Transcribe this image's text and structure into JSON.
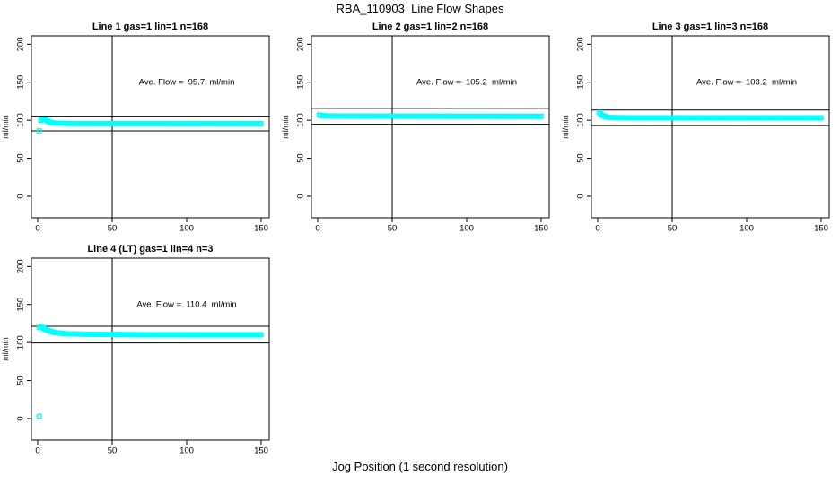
{
  "page_title": "RBA_110903  Line Flow Shapes",
  "outer_xlabel": "Jog Position (1 second resolution)",
  "colors": {
    "point": "#00ffff",
    "axis": "#000000",
    "text": "#000000",
    "background": "#ffffff"
  },
  "chart_data": [
    {
      "type": "scatter",
      "grid_cell": [
        0,
        0
      ],
      "title": "Line 1 gas=1 lin=1 n=168",
      "line": 1,
      "gas": 1,
      "lin": 1,
      "n": 168,
      "annotation": "Ave. Flow =  95.7  ml/min",
      "ave_flow_ml_min": 95.7,
      "ylabel": "ml/min",
      "x_ticks": [
        0,
        50,
        100,
        150
      ],
      "y_ticks": [
        0,
        50,
        100,
        150,
        200
      ],
      "xlim": [
        -4,
        155
      ],
      "ylim": [
        -28,
        212
      ],
      "ref_lines_ml_min": [
        105.3,
        86.1
      ],
      "vline_x": 50,
      "marker": "open-square",
      "grid": false,
      "series": {
        "name": "flow-vs-jog-position",
        "x_start": 2,
        "x_end": 150,
        "x_step": 1,
        "anchors": [
          [
            2,
            100
          ],
          [
            3,
            101
          ],
          [
            4,
            101.5
          ],
          [
            5,
            101
          ],
          [
            6,
            99.5
          ],
          [
            8,
            97.5
          ],
          [
            10,
            96.5
          ],
          [
            14,
            96
          ],
          [
            20,
            95.7
          ],
          [
            40,
            95.5
          ],
          [
            80,
            95.5
          ],
          [
            150,
            95.4
          ]
        ]
      },
      "outliers": [
        [
          1,
          86
        ]
      ]
    },
    {
      "type": "scatter",
      "grid_cell": [
        0,
        1
      ],
      "title": "Line 2 gas=1 lin=2 n=168",
      "line": 2,
      "gas": 1,
      "lin": 2,
      "n": 168,
      "annotation": "Ave. Flow =  105.2  ml/min",
      "ave_flow_ml_min": 105.2,
      "ylabel": "ml/min",
      "x_ticks": [
        0,
        50,
        100,
        150
      ],
      "y_ticks": [
        0,
        50,
        100,
        150,
        200
      ],
      "xlim": [
        -4,
        155
      ],
      "ylim": [
        -28,
        212
      ],
      "ref_lines_ml_min": [
        115.7,
        94.7
      ],
      "vline_x": 50,
      "marker": "open-square",
      "grid": false,
      "series": {
        "name": "flow-vs-jog-position",
        "x_start": 1,
        "x_end": 150,
        "x_step": 1,
        "anchors": [
          [
            1,
            107
          ],
          [
            3,
            106
          ],
          [
            6,
            105.5
          ],
          [
            15,
            105.3
          ],
          [
            150,
            105.1
          ]
        ]
      },
      "outliers": []
    },
    {
      "type": "scatter",
      "grid_cell": [
        0,
        2
      ],
      "title": "Line 3 gas=1 lin=3 n=168",
      "line": 3,
      "gas": 1,
      "lin": 3,
      "n": 168,
      "annotation": "Ave. Flow =  103.2  ml/min",
      "ave_flow_ml_min": 103.2,
      "ylabel": "ml/min",
      "x_ticks": [
        0,
        50,
        100,
        150
      ],
      "y_ticks": [
        0,
        50,
        100,
        150,
        200
      ],
      "xlim": [
        -4,
        155
      ],
      "ylim": [
        -28,
        212
      ],
      "ref_lines_ml_min": [
        113.5,
        92.9
      ],
      "vline_x": 50,
      "marker": "open-square",
      "grid": false,
      "series": {
        "name": "flow-vs-jog-position",
        "x_start": 1,
        "x_end": 150,
        "x_step": 1,
        "anchors": [
          [
            1,
            110
          ],
          [
            2,
            108.5
          ],
          [
            4,
            105.5
          ],
          [
            7,
            103.8
          ],
          [
            12,
            103.4
          ],
          [
            30,
            103.2
          ],
          [
            150,
            103.1
          ]
        ]
      },
      "outliers": []
    },
    {
      "type": "scatter",
      "grid_cell": [
        1,
        0
      ],
      "title": "Line 4 (LT) gas=1 lin=4 n=3",
      "line": 4,
      "gas": 1,
      "lin": 4,
      "n": 3,
      "annotation": "Ave. Flow =  110.4  ml/min",
      "ave_flow_ml_min": 110.4,
      "ylabel": "ml/min",
      "x_ticks": [
        0,
        50,
        100,
        150
      ],
      "y_ticks": [
        0,
        50,
        100,
        150,
        200
      ],
      "xlim": [
        -4,
        155
      ],
      "ylim": [
        -28,
        212
      ],
      "ref_lines_ml_min": [
        121.4,
        99.4
      ],
      "vline_x": 50,
      "marker": "open-square",
      "grid": false,
      "series": {
        "name": "flow-vs-jog-position",
        "x_start": 1,
        "x_end": 150,
        "x_step": 1,
        "anchors": [
          [
            1,
            119.5
          ],
          [
            2,
            120.5
          ],
          [
            3,
            120
          ],
          [
            4,
            118.5
          ],
          [
            6,
            116.5
          ],
          [
            8,
            115
          ],
          [
            12,
            113
          ],
          [
            18,
            111.7
          ],
          [
            25,
            111.2
          ],
          [
            40,
            110.7
          ],
          [
            80,
            110.3
          ],
          [
            150,
            110.1
          ]
        ]
      },
      "outliers": [
        [
          1,
          3
        ]
      ]
    }
  ]
}
